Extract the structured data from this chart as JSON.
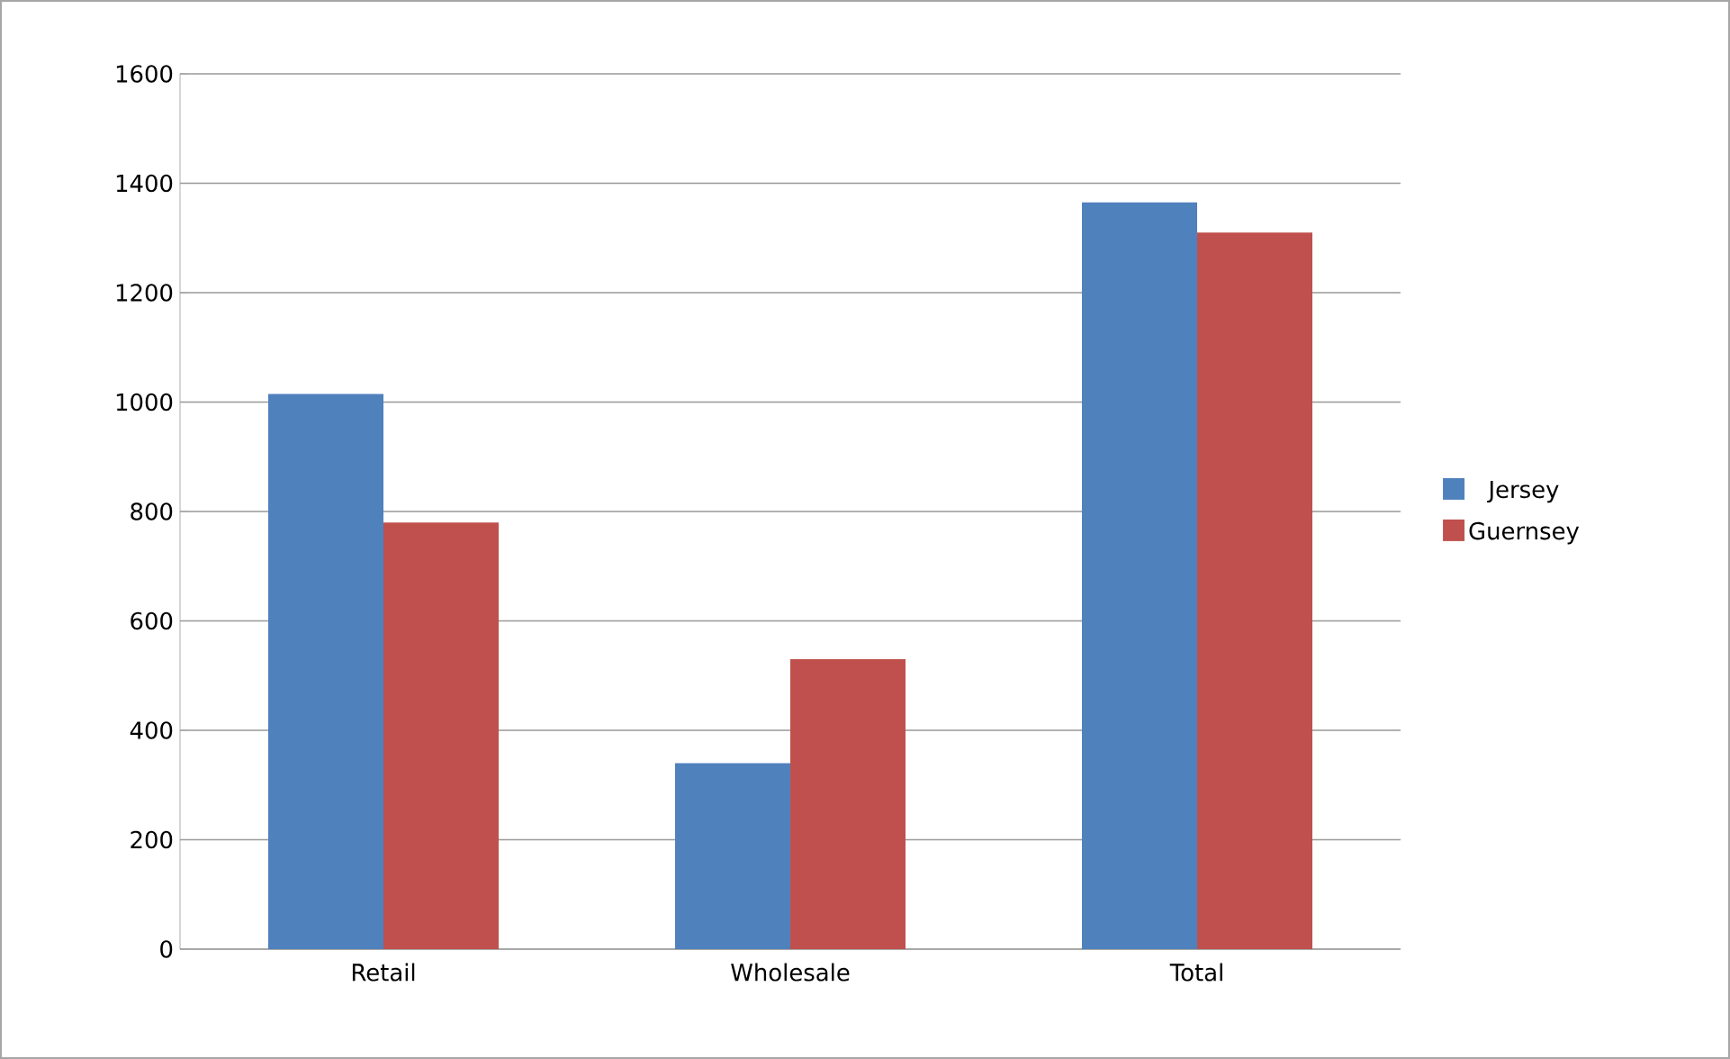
{
  "chart_data": {
    "type": "bar",
    "categories": [
      "Retail",
      "Wholesale",
      "Total"
    ],
    "series": [
      {
        "name": "Jersey",
        "color": "#4f81bd",
        "values": [
          1015,
          340,
          1365
        ]
      },
      {
        "name": "Guernsey",
        "color": "#c0504d",
        "values": [
          780,
          530,
          1310
        ]
      }
    ],
    "ylim": [
      0,
      1600
    ],
    "yticks": [
      0,
      200,
      400,
      600,
      800,
      1000,
      1200,
      1400,
      1600
    ],
    "grid": "y",
    "legend": "right"
  }
}
